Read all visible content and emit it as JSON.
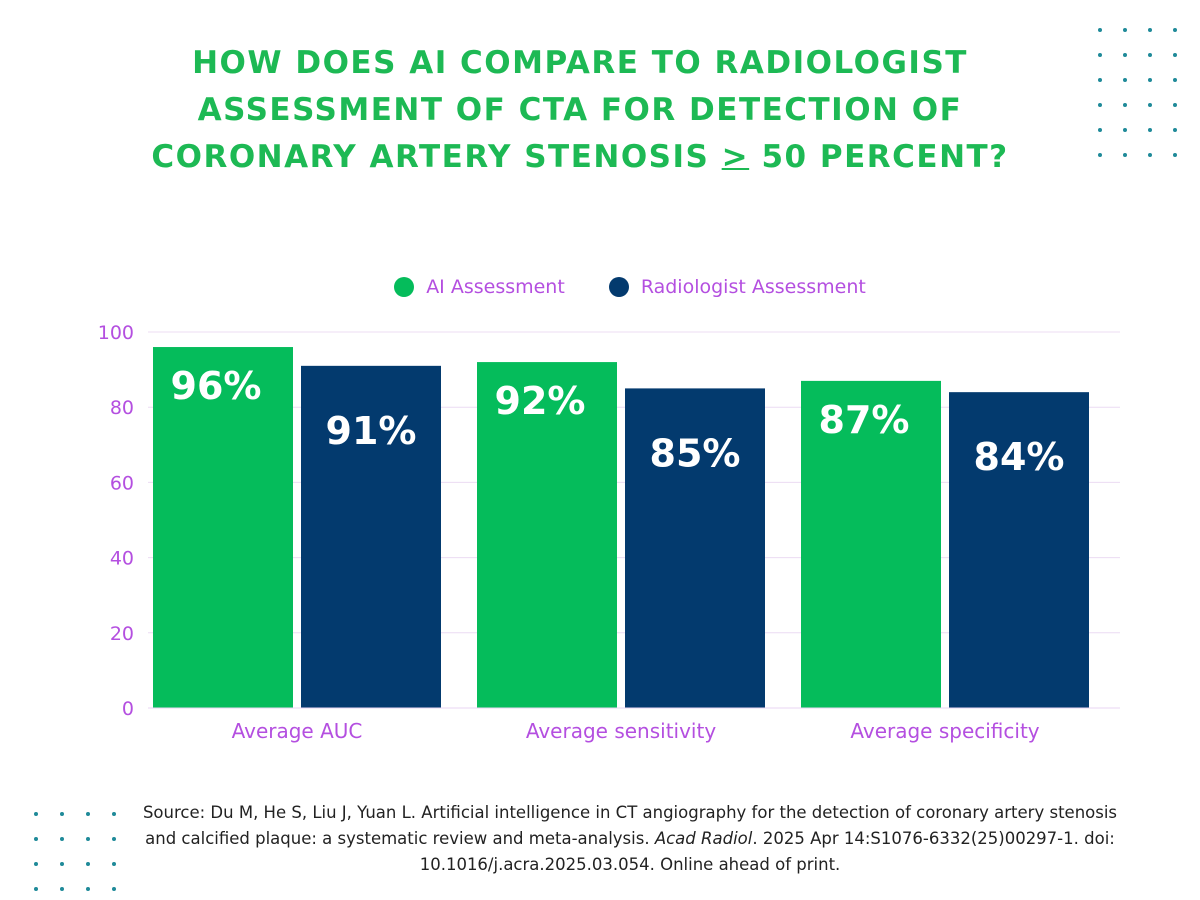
{
  "title": {
    "part1": "HOW DOES AI COMPARE TO RADIOLOGIST ASSESSMENT OF CTA FOR DETECTION OF CORONARY ARTERY STENOSIS",
    "symbol": ">",
    "part2": "50 PERCENT?"
  },
  "colors": {
    "ai": "#05bc5b",
    "radiologist": "#033a6e",
    "axis_text": "#b44fe0",
    "title": "#1db954",
    "dots": "#1f8a99"
  },
  "chart_data": {
    "type": "bar",
    "categories": [
      "Average AUC",
      "Average sensitivity",
      "Average specificity"
    ],
    "series": [
      {
        "name": "AI Assessment",
        "values": [
          96,
          92,
          87
        ],
        "labels": [
          "96%",
          "92%",
          "87%"
        ]
      },
      {
        "name": "Radiologist Assessment",
        "values": [
          91,
          85,
          84
        ],
        "labels": [
          "91%",
          "85%",
          "84%"
        ]
      }
    ],
    "ylim": [
      0,
      100
    ],
    "yticks": [
      0,
      20,
      40,
      60,
      80,
      100
    ],
    "grid": true,
    "legend_position": "top-center"
  },
  "source": {
    "prefix": "Source: Du M, He S, Liu J, Yuan L. Artificial intelligence in CT angiography for the detection of coronary artery stenosis and calcified plaque: a systematic review and meta-analysis.",
    "journal": "Acad Radiol",
    "suffix": ". 2025 Apr 14:S1076-6332(25)00297-1. doi: 10.1016/j.acra.2025.03.054. Online ahead of print."
  }
}
